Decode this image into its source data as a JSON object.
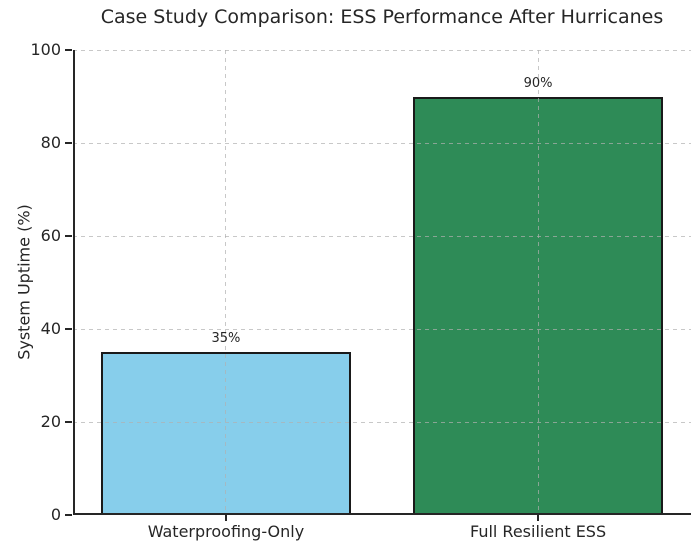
{
  "window": {
    "background": "#ffffff"
  },
  "chart_data": {
    "type": "bar",
    "title": "Case Study Comparison: ESS Performance After Hurricanes",
    "ylabel": "System Uptime (%)",
    "xlabel": "",
    "categories": [
      "Waterproofing-Only",
      "Full Resilient ESS"
    ],
    "values": [
      35,
      90
    ],
    "value_labels": [
      "35%",
      "90%"
    ],
    "bar_colors": [
      "#87CEEB",
      "#2E8B57"
    ],
    "bar_edge_color": "#1a1a1a",
    "ylim": [
      0,
      100
    ],
    "yticks": [
      0,
      20,
      40,
      60,
      80,
      100
    ],
    "ytick_labels": [
      "0",
      "20",
      "40",
      "60",
      "80",
      "100"
    ],
    "grid": true,
    "grid_line_style": "dashed",
    "grid_color": "#b0b0b0",
    "axis_color": "#262626",
    "text_color": "#262626",
    "legend_position": "none"
  }
}
